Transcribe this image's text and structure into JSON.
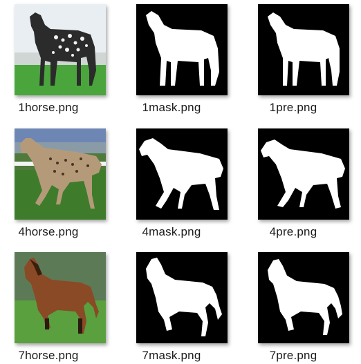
{
  "files": [
    {
      "name": "1horse.png",
      "kind": "photo"
    },
    {
      "name": "1mask.png",
      "kind": "mask"
    },
    {
      "name": "1pre.png",
      "kind": "mask"
    },
    {
      "name": "4horse.png",
      "kind": "photo"
    },
    {
      "name": "4mask.png",
      "kind": "mask"
    },
    {
      "name": "4pre.png",
      "kind": "mask"
    },
    {
      "name": "7horse.png",
      "kind": "photo"
    },
    {
      "name": "7mask.png",
      "kind": "mask"
    },
    {
      "name": "7pre.png",
      "kind": "mask"
    }
  ]
}
